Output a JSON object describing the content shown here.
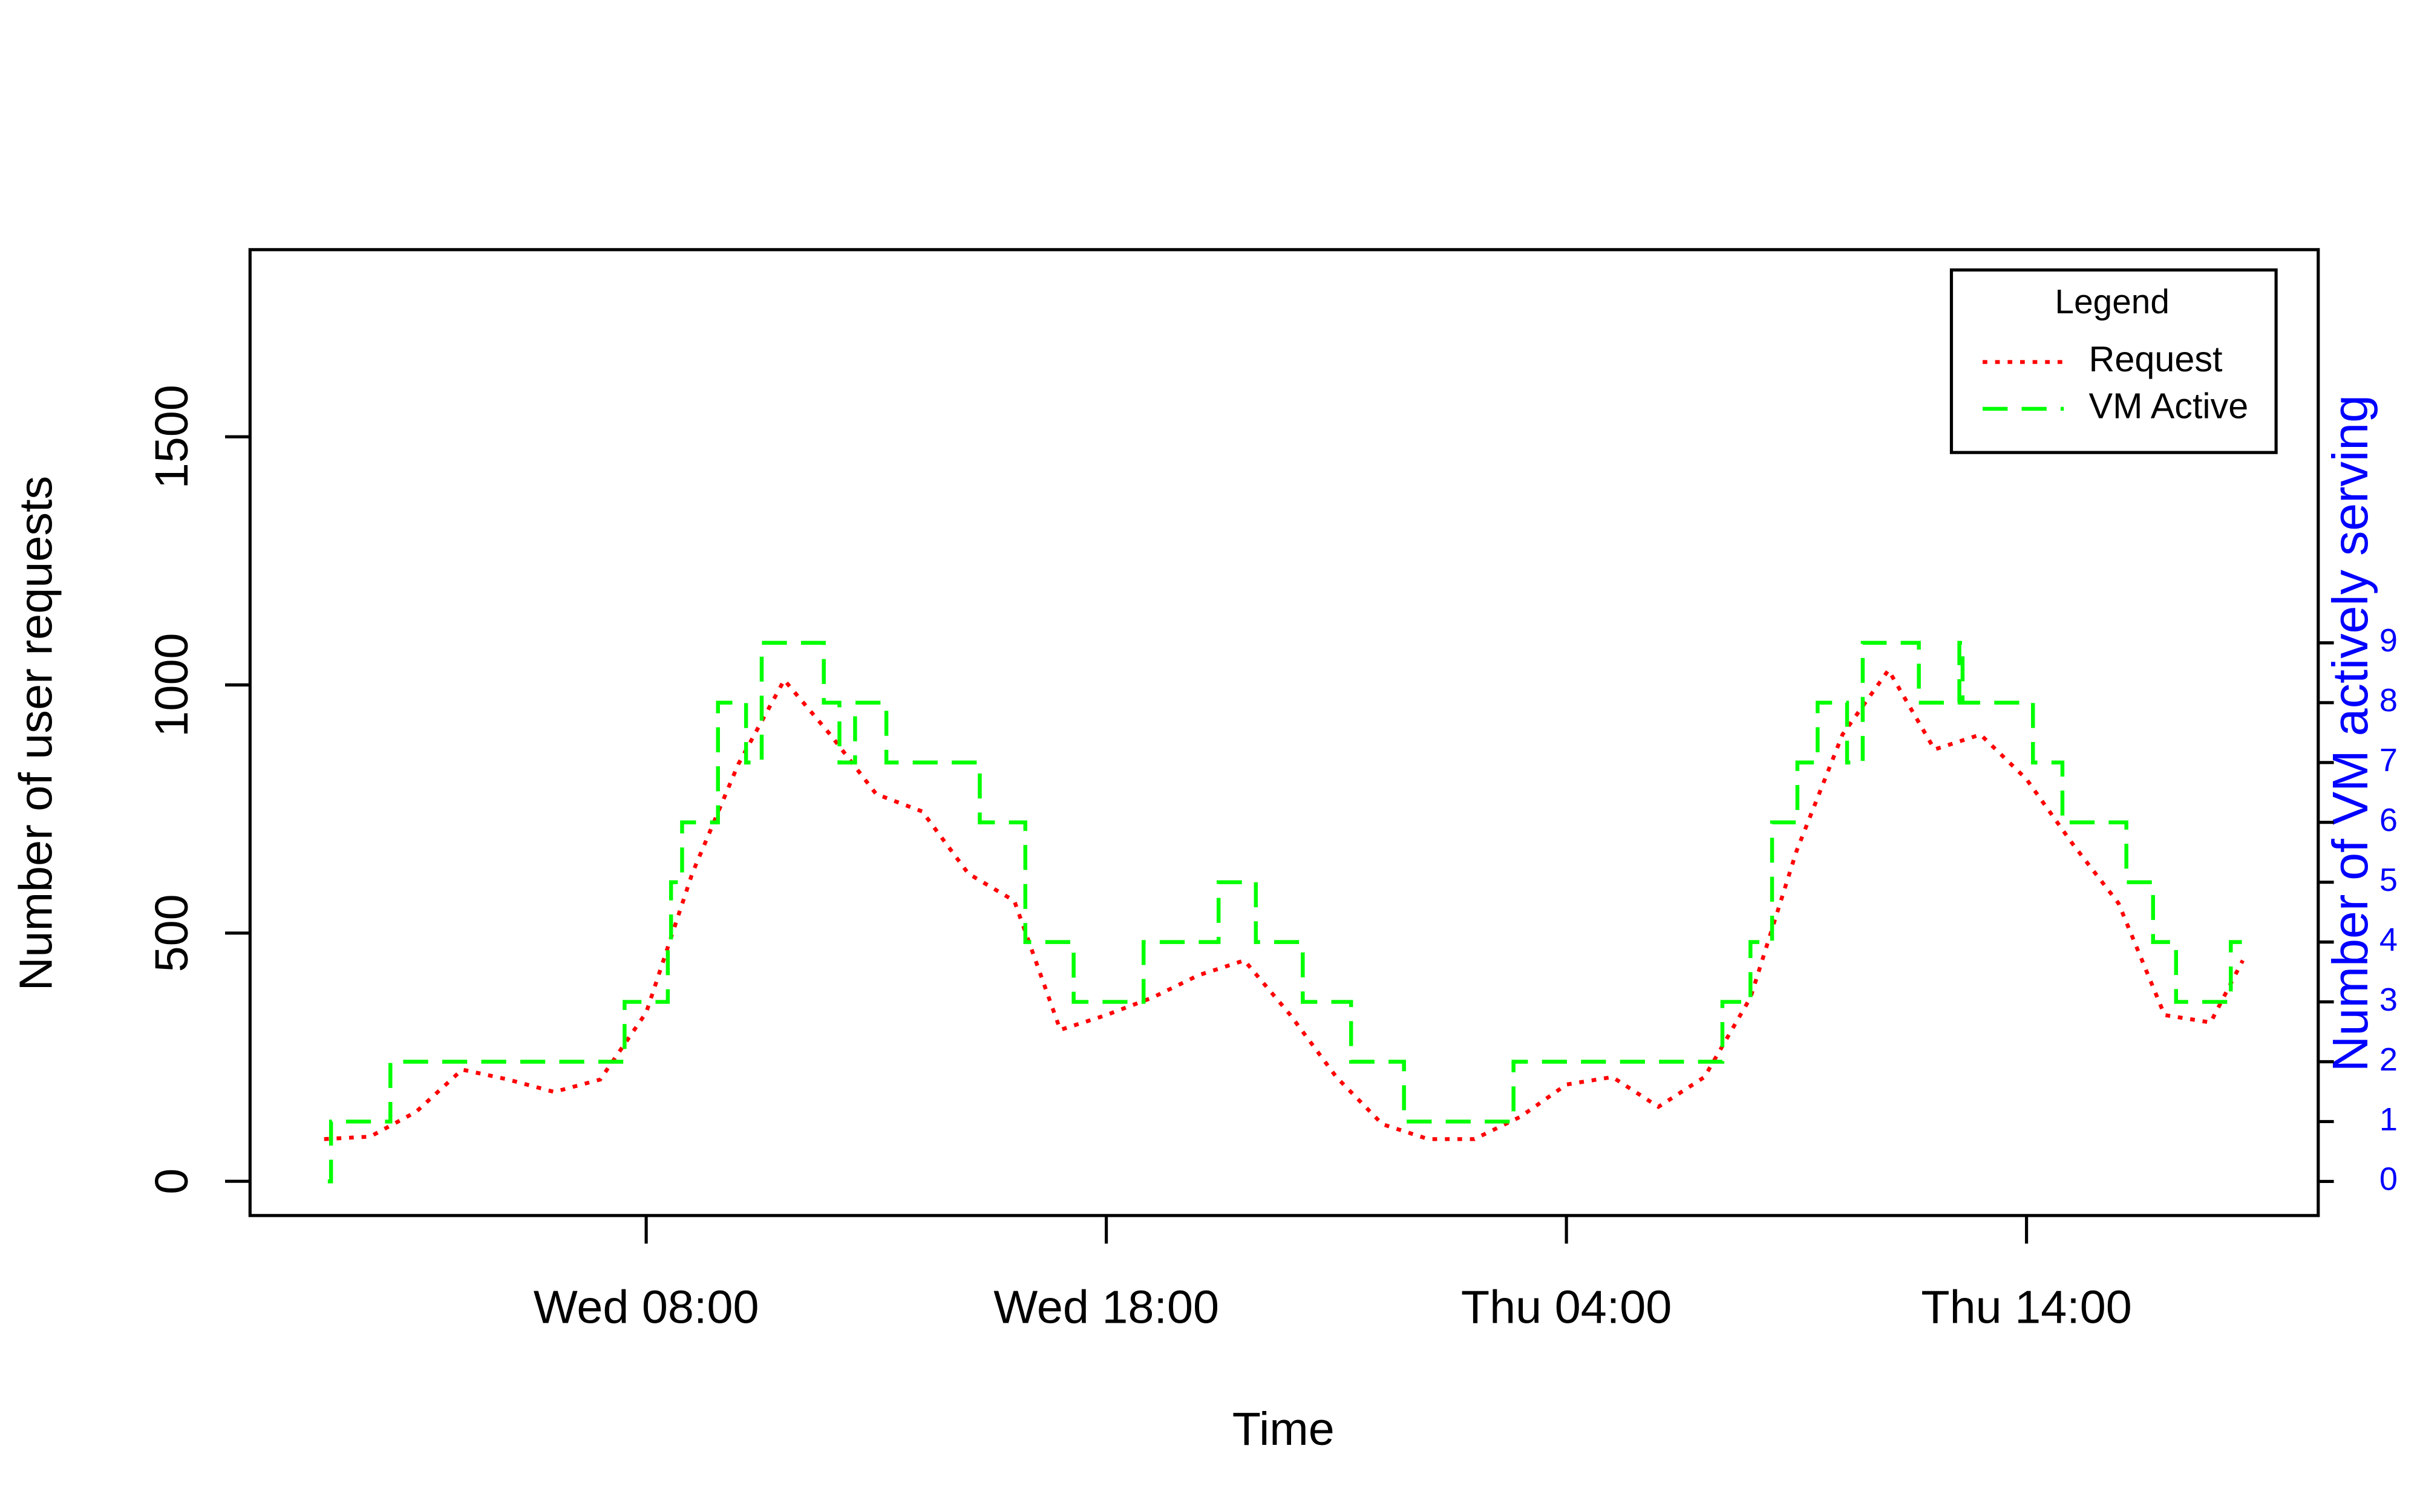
{
  "chart_data": {
    "type": "line",
    "x_label": "Time",
    "y_label": "Number of user requests",
    "y2_label": "Number of VM actively serving",
    "xlim": [
      -0.61,
      44.34
    ],
    "xticks": [
      {
        "value": 8,
        "label": "Wed 08:00"
      },
      {
        "value": 18,
        "label": "Wed 18:00"
      },
      {
        "value": 28,
        "label": "Thu 04:00"
      },
      {
        "value": 38,
        "label": "Thu 14:00"
      }
    ],
    "ylim": [
      -69,
      1877
    ],
    "yticks": [
      0,
      500,
      1000,
      1500
    ],
    "y2lim": [
      -0.57,
      15.57
    ],
    "y2ticks": [
      0,
      1,
      2,
      3,
      4,
      5,
      6,
      7,
      8,
      9
    ],
    "y2_color": "#0000ff",
    "legend": {
      "title": "Legend",
      "position": "topright"
    },
    "series": [
      {
        "name": "Request",
        "color": "#ff0000",
        "dash": "dotted",
        "step": false,
        "axis": "y",
        "x": [
          1,
          2,
          3,
          4,
          5,
          6,
          7,
          8,
          9,
          10,
          11,
          12,
          13,
          14,
          15,
          16,
          17,
          18,
          19,
          20,
          21,
          22,
          23,
          24,
          25,
          26,
          27,
          28,
          29,
          30,
          31,
          32,
          33,
          34,
          35,
          36,
          37,
          38,
          39,
          40,
          41,
          42,
          42.7
        ],
        "values": [
          85,
          90,
          140,
          225,
          205,
          180,
          205,
          340,
          620,
          840,
          1010,
          900,
          780,
          745,
          620,
          565,
          305,
          335,
          370,
          415,
          445,
          335,
          210,
          115,
          85,
          85,
          130,
          195,
          210,
          150,
          210,
          370,
          665,
          900,
          1030,
          870,
          900,
          810,
          680,
          560,
          335,
          320,
          445
        ]
      },
      {
        "name": "VM Active",
        "color": "#00ff00",
        "dash": "dashed",
        "step": true,
        "axis": "y2",
        "x": [
          1.08,
          1.15,
          2.44,
          7.53,
          8.47,
          8.54,
          8.78,
          9.56,
          10.17,
          10.51,
          11.86,
          12.2,
          12.54,
          13.22,
          15.25,
          16.24,
          17.29,
          18.81,
          20.44,
          21.25,
          22.27,
          23.32,
          24.47,
          26.85,
          31.39,
          32,
          32.47,
          33.02,
          33.46,
          34.1,
          34.44,
          35.66,
          36.54,
          36.61,
          38.14,
          38.78,
          40.17,
          40.75,
          41.25,
          42.44,
          42.68
        ],
        "values": [
          0,
          1,
          2,
          3,
          4,
          5,
          6,
          8,
          7,
          9,
          8,
          7,
          8,
          7,
          6,
          4,
          3,
          4,
          5,
          4,
          3,
          2,
          1,
          2,
          3,
          4,
          6,
          7,
          8,
          7,
          9,
          8,
          9,
          8,
          7,
          6,
          5,
          4,
          3,
          4,
          4
        ]
      }
    ]
  }
}
